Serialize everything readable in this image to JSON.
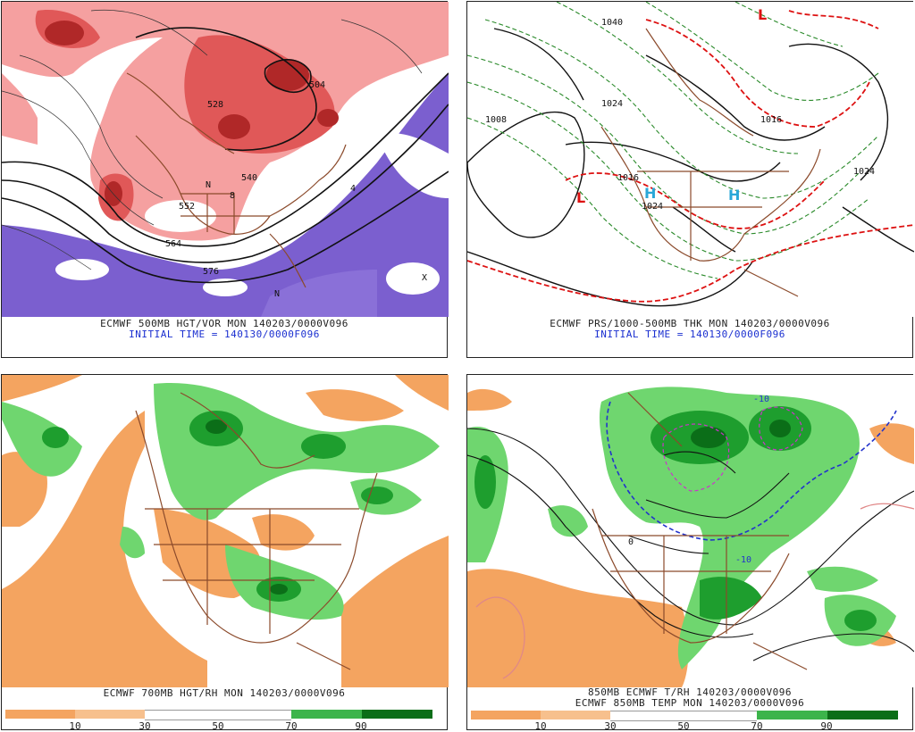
{
  "panels": [
    {
      "id": "p1",
      "caption1": "ECMWF 500MB HGT/VOR MON 140203/0000V096",
      "caption2": "INITIAL TIME = 140130/0000F096",
      "labels": [
        "552",
        "576",
        "504",
        "528",
        "540",
        "564",
        "N",
        "X",
        "8",
        "4"
      ]
    },
    {
      "id": "p2",
      "caption1": "ECMWF PRS/1000-500MB THK MON 140203/0000V096",
      "caption2": "INITIAL TIME = 140130/0000F096",
      "labels": [
        "1008",
        "1024",
        "1016",
        "1040",
        "H",
        "L"
      ]
    },
    {
      "id": "p3",
      "caption1": "ECMWF 700MB HGT/RH MON 140203/0000V096",
      "scale": [
        "10",
        "30",
        "50",
        "70",
        "90"
      ]
    },
    {
      "id": "p4",
      "caption1": "850MB ECMWF T/RH 140203/0000V096",
      "caption2": "ECMWF 850MB TEMP MON 140203/0000V096",
      "scale": [
        "10",
        "30",
        "50",
        "70",
        "90"
      ],
      "labels": [
        "-10",
        "0"
      ]
    }
  ],
  "colors": {
    "purple": "#7b5fcf",
    "red1": "#f5a0a0",
    "red2": "#e05858",
    "red3": "#b02828",
    "orange": "#f4a460",
    "green1": "#6fd66f",
    "green2": "#1e9e2e",
    "green3": "#0b6e18",
    "coast": "#8b4a2b"
  }
}
